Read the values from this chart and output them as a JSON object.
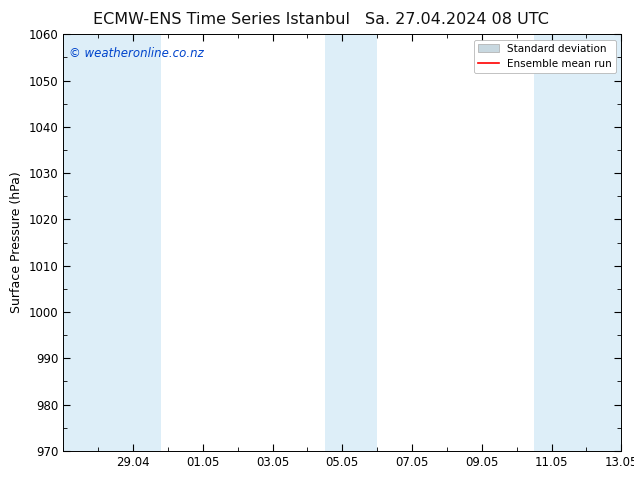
{
  "title_left": "ECMW-ENS Time Series Istanbul",
  "title_right": "Sa. 27.04.2024 08 UTC",
  "ylabel": "Surface Pressure (hPa)",
  "watermark": "© weatheronline.co.nz",
  "ylim": [
    970,
    1060
  ],
  "yticks": [
    970,
    980,
    990,
    1000,
    1010,
    1020,
    1030,
    1040,
    1050,
    1060
  ],
  "xlim_start": 0.0,
  "xlim_end": 16.0,
  "xtick_positions": [
    2.0,
    4.0,
    6.0,
    8.0,
    10.0,
    12.0,
    14.0,
    16.0
  ],
  "xtick_labels": [
    "29.04",
    "01.05",
    "03.05",
    "05.05",
    "07.05",
    "09.05",
    "11.05",
    "13.05"
  ],
  "shaded_bands": [
    {
      "x_start": 0.0,
      "x_end": 2.8
    },
    {
      "x_start": 7.5,
      "x_end": 9.0
    },
    {
      "x_start": 13.5,
      "x_end": 16.0
    }
  ],
  "shade_color": "#ddeef8",
  "background_color": "#ffffff",
  "legend_std_color": "#c8d8e0",
  "legend_mean_color": "#ff0000",
  "watermark_color": "#0044cc",
  "title_fontsize": 11.5,
  "ylabel_fontsize": 9,
  "tick_fontsize": 8.5,
  "watermark_fontsize": 8.5,
  "legend_fontsize": 7.5
}
